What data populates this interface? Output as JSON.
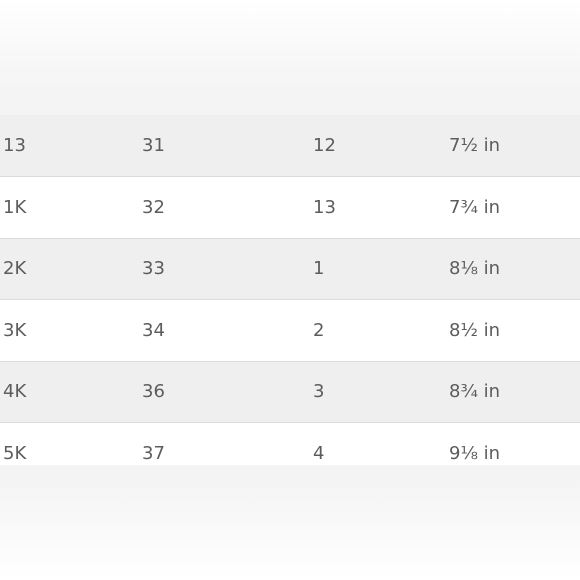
{
  "size_table": {
    "rows": [
      {
        "col1": "13",
        "col2": "31",
        "col3": "12",
        "col4": "7½ in"
      },
      {
        "col1": "1K",
        "col2": "32",
        "col3": "13",
        "col4": "7¾ in"
      },
      {
        "col1": "2K",
        "col2": "33",
        "col3": "1",
        "col4": "8⅛ in"
      },
      {
        "col1": "3K",
        "col2": "34",
        "col3": "2",
        "col4": "8½ in"
      },
      {
        "col1": "4K",
        "col2": "36",
        "col3": "3",
        "col4": "8¾ in"
      },
      {
        "col1": "5K",
        "col2": "37",
        "col3": "4",
        "col4": "9⅛ in"
      }
    ]
  },
  "colors": {
    "text": "#5c5c5c",
    "row_shaded": "#efefef",
    "row_plain": "#ffffff",
    "divider": "#dcdcdc"
  }
}
